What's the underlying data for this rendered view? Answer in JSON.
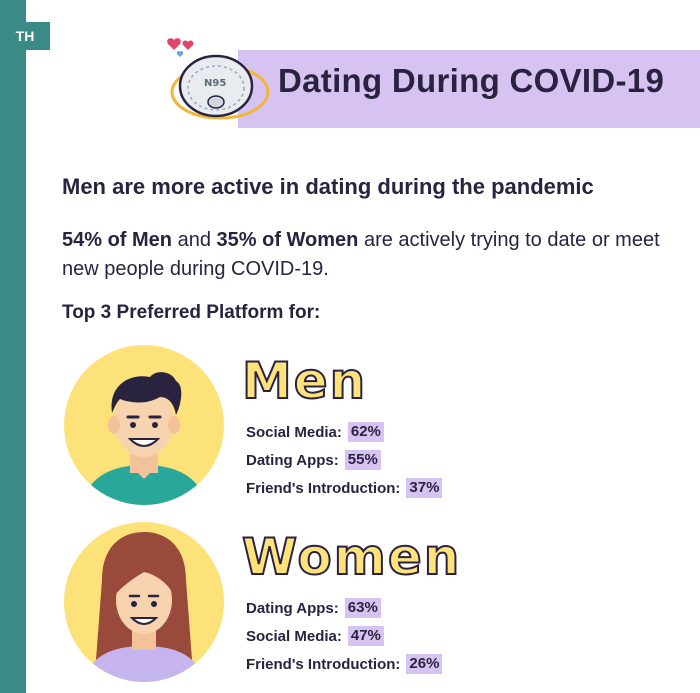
{
  "country_tag": "TH",
  "title": "Dating During COVID-19",
  "mask_label": "N95",
  "headline": "Men are more active in dating during the pandemic",
  "stat": {
    "men_part": "54% of Men",
    "and": " and ",
    "women_part": "35% of Women",
    "rest": " are actively trying to date or meet new people during COVID-19."
  },
  "subhead": "Top 3 Preferred Platform for:",
  "groups": {
    "men": {
      "title": "Men",
      "platforms": [
        {
          "label": "Social Media:",
          "pct": "62%"
        },
        {
          "label": "Dating Apps:",
          "pct": "55%"
        },
        {
          "label": "Friend's Introduction:",
          "pct": "37%"
        }
      ]
    },
    "women": {
      "title": "Women",
      "platforms": [
        {
          "label": "Dating Apps:",
          "pct": "63%"
        },
        {
          "label": "Social Media:",
          "pct": "47%"
        },
        {
          "label": "Friend's Introduction:",
          "pct": "26%"
        }
      ]
    }
  },
  "colors": {
    "teal": "#3a8a85",
    "lavender": "#d7c3f2",
    "yellow": "#ffe27a",
    "navy": "#2a2340"
  }
}
